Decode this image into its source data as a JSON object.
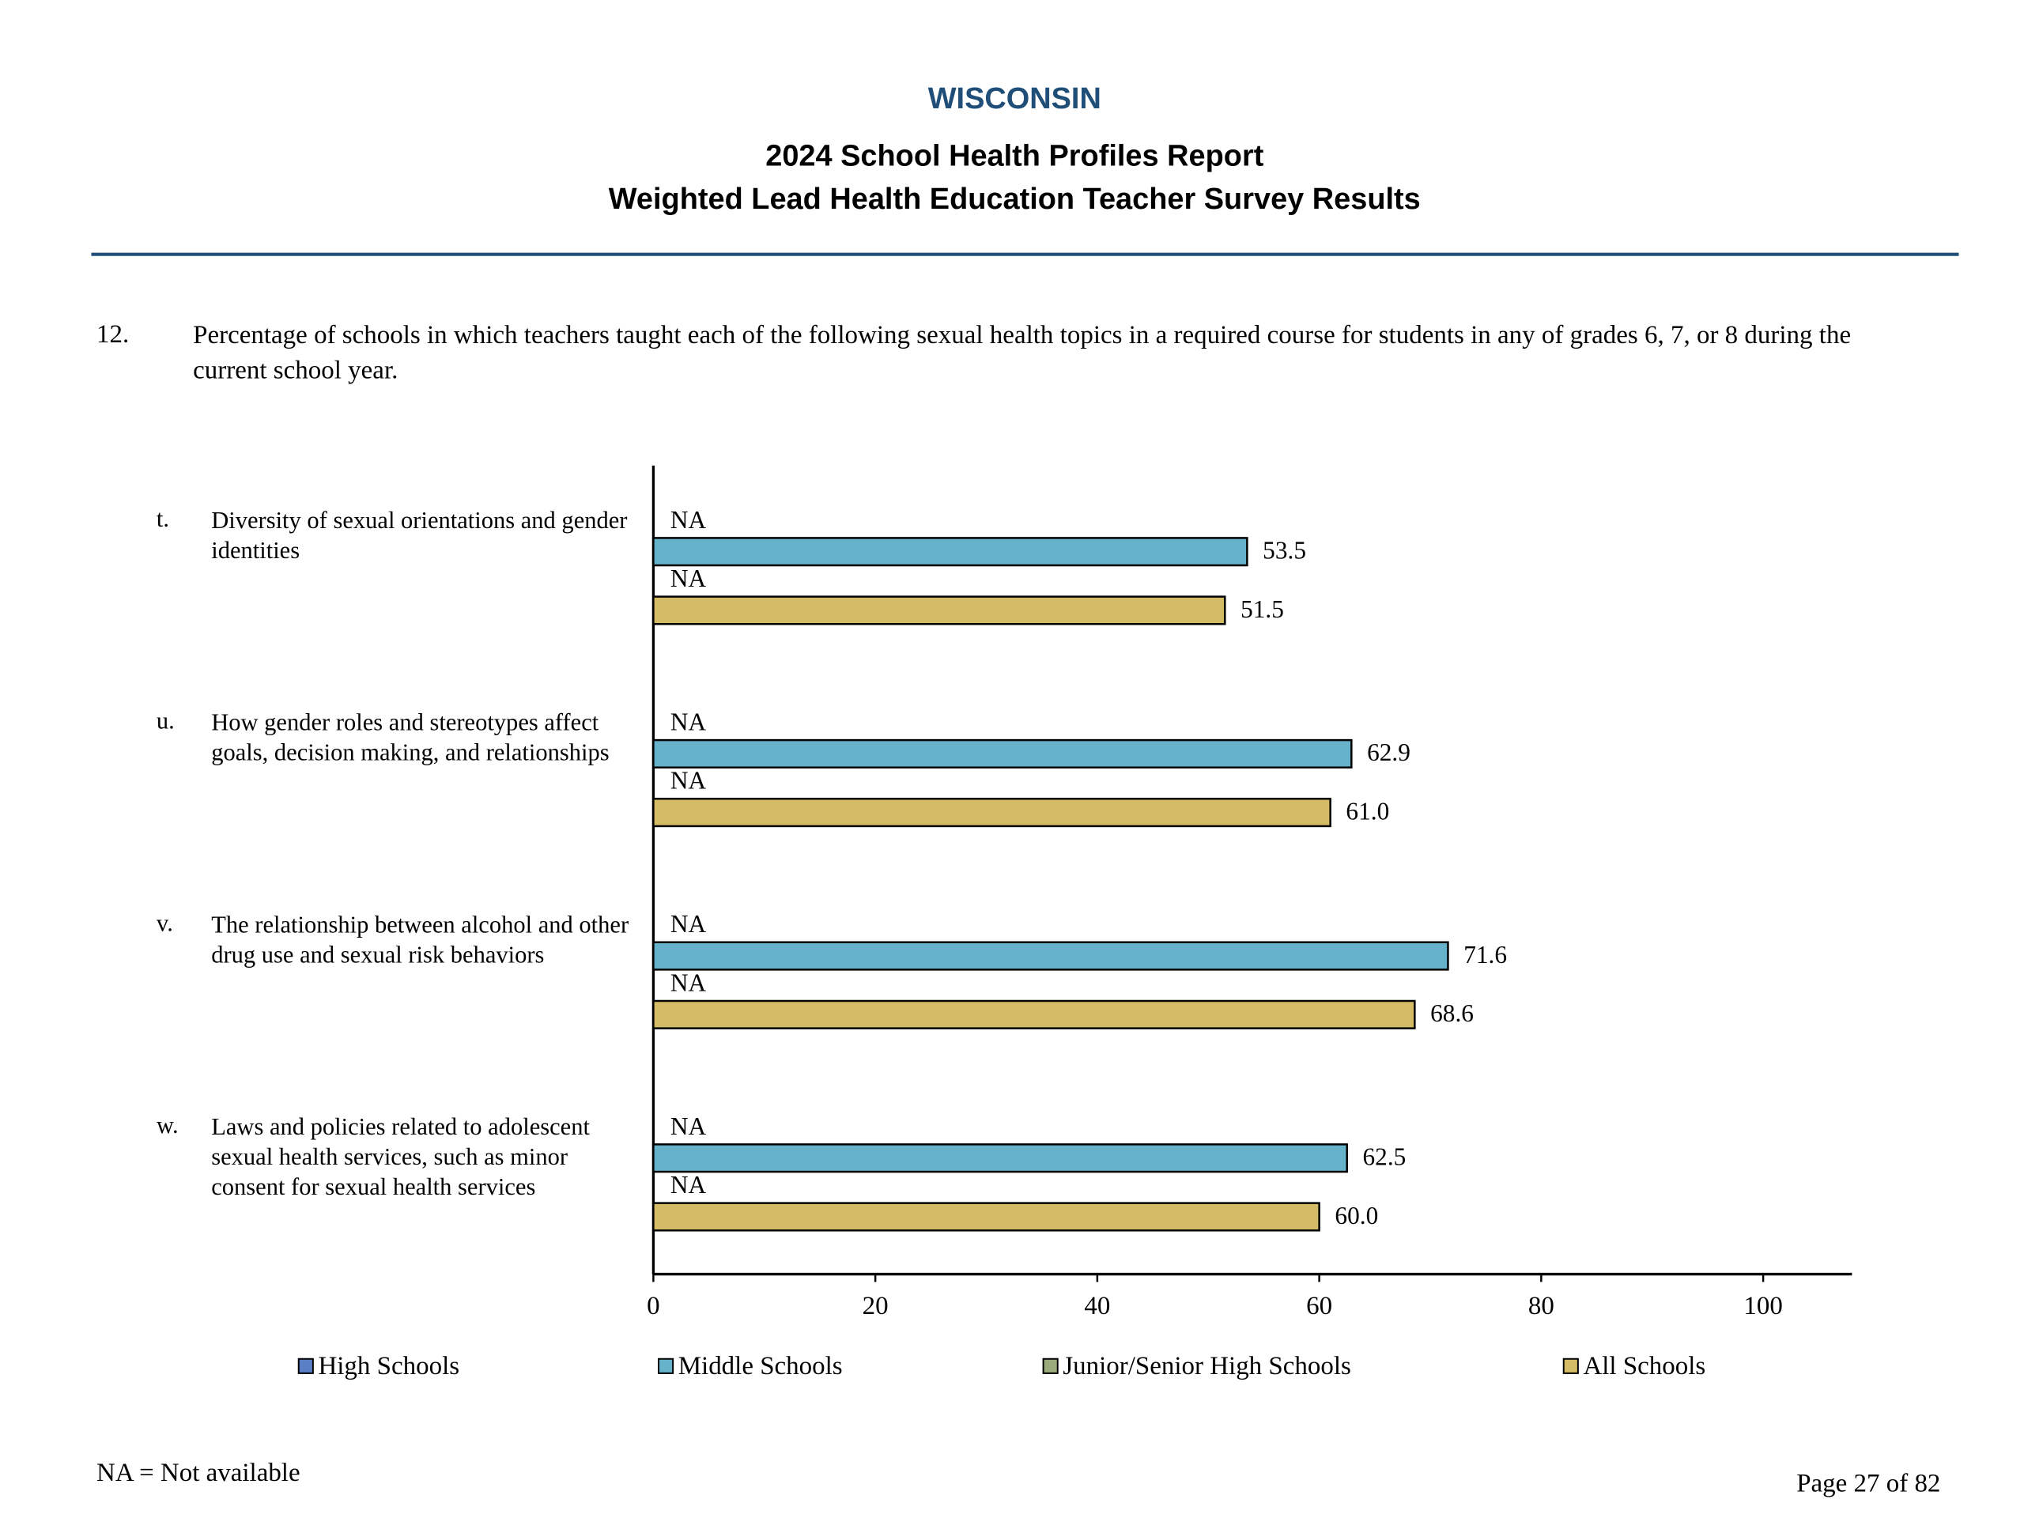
{
  "header": {
    "state": "WISCONSIN",
    "title": "2024 School Health Profiles Report",
    "subtitle": "Weighted Lead Health Education Teacher Survey Results"
  },
  "question": {
    "number": "12.",
    "text": "Percentage of schools in which teachers taught each of the following sexual health topics in a required course for students in any of grades 6, 7, or 8 during the current school year."
  },
  "chart_data": {
    "type": "bar",
    "orientation": "horizontal",
    "category_letters": [
      "t.",
      "u.",
      "v.",
      "w."
    ],
    "categories": [
      "Diversity of sexual orientations and gender identities",
      "How gender roles and stereotypes affect goals, decision making, and relationships",
      "The relationship between alcohol and other drug use and sexual risk behaviors",
      "Laws and policies related to adolescent sexual health services, such as minor consent for sexual health services"
    ],
    "series": [
      {
        "name": "High Schools",
        "color": "#5b7fc7",
        "values": [
          null,
          null,
          null,
          null
        ],
        "value_labels": [
          "NA",
          "NA",
          "NA",
          "NA"
        ]
      },
      {
        "name": "Middle Schools",
        "color": "#65b2ca",
        "values": [
          53.5,
          62.9,
          71.6,
          62.5
        ],
        "value_labels": [
          "53.5",
          "62.9",
          "71.6",
          "62.5"
        ]
      },
      {
        "name": "Junior/Senior High Schools",
        "color": "#9bac7c",
        "values": [
          null,
          null,
          null,
          null
        ],
        "value_labels": [
          "NA",
          "NA",
          "NA",
          "NA"
        ]
      },
      {
        "name": "All Schools",
        "color": "#d4bc66",
        "values": [
          51.5,
          61.0,
          68.6,
          60.0
        ],
        "value_labels": [
          "51.5",
          "61.0",
          "68.6",
          "60.0"
        ]
      }
    ],
    "xlim": [
      0,
      108
    ],
    "xticks": [
      0,
      20,
      40,
      60,
      80,
      100
    ]
  },
  "footnote": "NA = Not available",
  "page_number": "Page 27 of 82"
}
